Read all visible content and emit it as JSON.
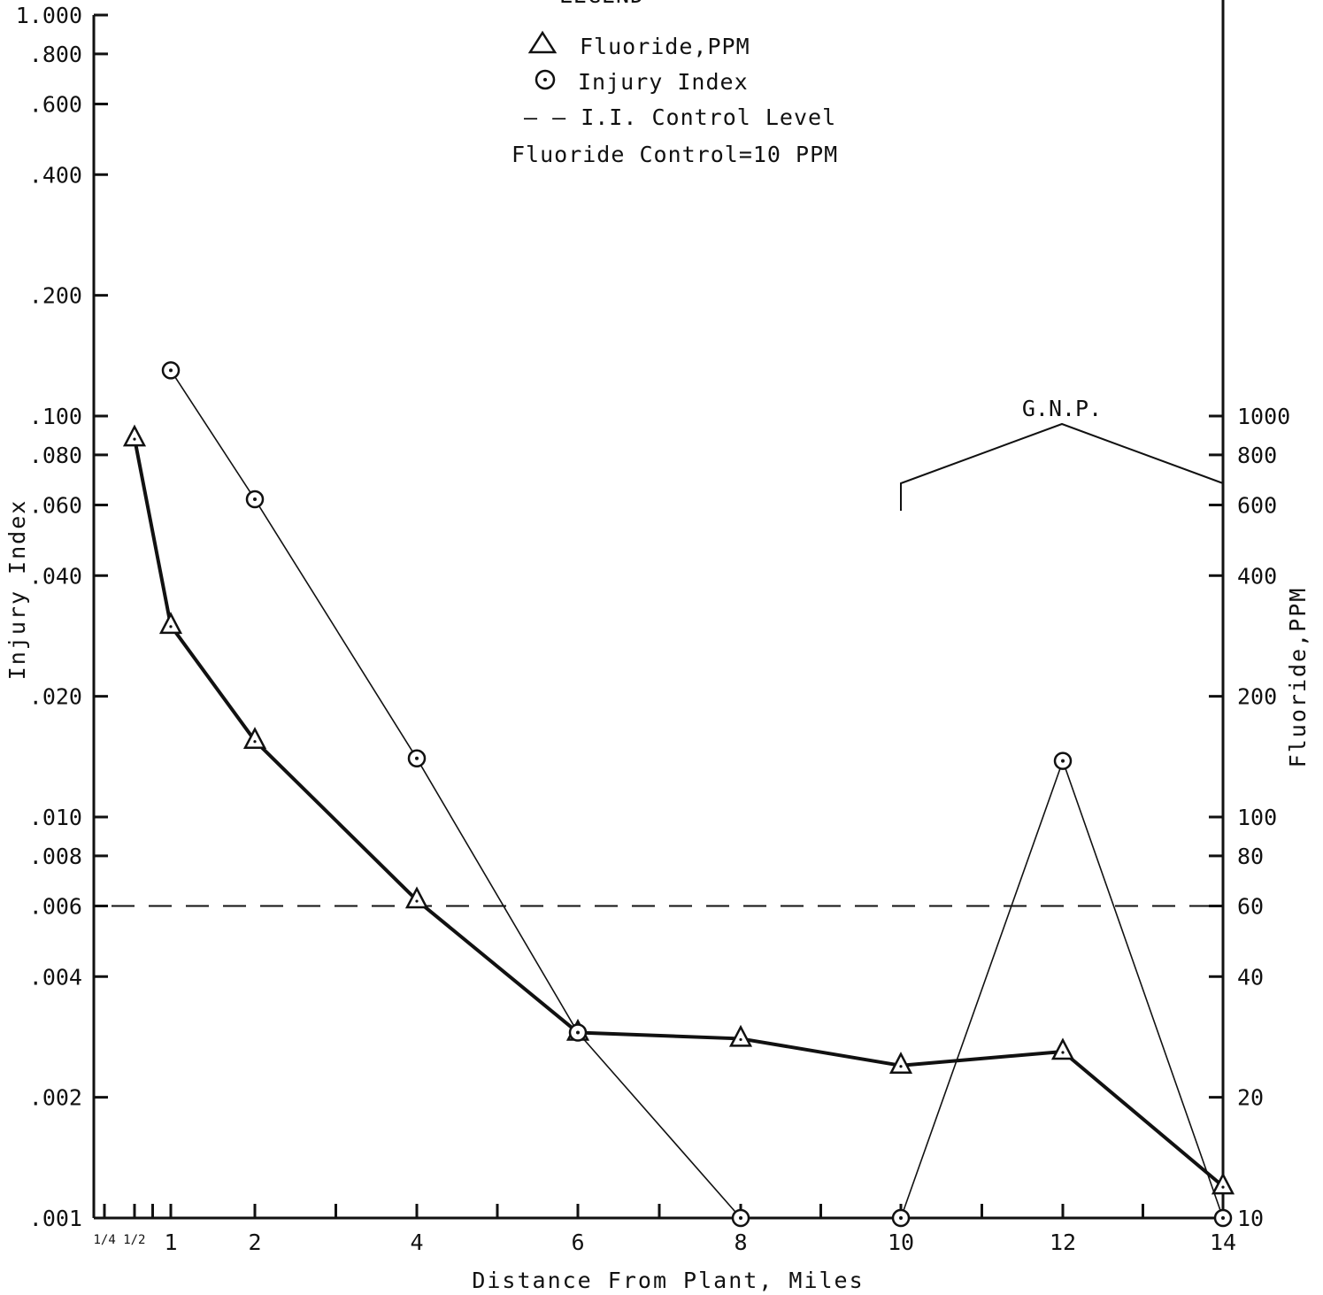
{
  "chart_data": {
    "type": "line",
    "title": "",
    "legend_title": "LEGEND",
    "legend": {
      "fluoride": "Fluoride,PPM",
      "injury": "Injury Index",
      "control_line": "— — I.I. Control Level",
      "fluoride_control": "Fluoride Control=10 PPM"
    },
    "xlabel": "Distance From Plant, Miles",
    "ylabel_left": "Injury Index",
    "ylabel_right": "Fluoride,PPM",
    "x_tick_labels": [
      {
        "x": 0.375,
        "label": "1/4 1/2"
      },
      {
        "x": 1,
        "label": "1"
      },
      {
        "x": 2,
        "label": "2"
      },
      {
        "x": 4,
        "label": "4"
      },
      {
        "x": 6,
        "label": "6"
      },
      {
        "x": 8,
        "label": "8"
      },
      {
        "x": 10,
        "label": "10"
      },
      {
        "x": 12,
        "label": "12"
      },
      {
        "x": 14,
        "label": "14"
      }
    ],
    "x_minor_ticks": [
      0.25,
      0.5,
      0.75,
      3,
      5,
      7,
      9,
      11,
      13
    ],
    "xlim": [
      0,
      14
    ],
    "y_left": {
      "scale": "log",
      "lim": [
        0.001,
        1.0
      ],
      "ticks": [
        {
          "v": 1.0,
          "label": "1.000"
        },
        {
          "v": 0.8,
          "label": ".800"
        },
        {
          "v": 0.6,
          "label": ".600"
        },
        {
          "v": 0.4,
          "label": ".400"
        },
        {
          "v": 0.2,
          "label": ".200"
        },
        {
          "v": 0.1,
          "label": ".100"
        },
        {
          "v": 0.08,
          "label": ".080"
        },
        {
          "v": 0.06,
          "label": ".060"
        },
        {
          "v": 0.04,
          "label": ".040"
        },
        {
          "v": 0.02,
          "label": ".020"
        },
        {
          "v": 0.01,
          "label": ".010"
        },
        {
          "v": 0.008,
          "label": ".008"
        },
        {
          "v": 0.006,
          "label": ".006"
        },
        {
          "v": 0.004,
          "label": ".004"
        },
        {
          "v": 0.002,
          "label": ".002"
        },
        {
          "v": 0.001,
          "label": ".001"
        }
      ]
    },
    "y_right": {
      "scale": "log",
      "lim": [
        10,
        10000
      ],
      "ticks": [
        {
          "v": 1000,
          "label": "1000"
        },
        {
          "v": 800,
          "label": "800"
        },
        {
          "v": 600,
          "label": "600"
        },
        {
          "v": 400,
          "label": "400"
        },
        {
          "v": 200,
          "label": "200"
        },
        {
          "v": 100,
          "label": "100"
        },
        {
          "v": 80,
          "label": "80"
        },
        {
          "v": 60,
          "label": "60"
        },
        {
          "v": 40,
          "label": "40"
        },
        {
          "v": 20,
          "label": "20"
        },
        {
          "v": 10,
          "label": "10"
        }
      ]
    },
    "series": [
      {
        "name": "Fluoride,PPM",
        "axis": "right",
        "marker": "triangle",
        "x": [
          0.5,
          1,
          2,
          4,
          6,
          8,
          10,
          12,
          14
        ],
        "y": [
          880,
          300,
          155,
          62,
          29,
          28,
          24,
          26,
          12
        ]
      },
      {
        "name": "Injury Index",
        "axis": "left",
        "marker": "circle",
        "x": [
          1,
          2,
          4,
          6,
          8,
          10,
          12,
          14
        ],
        "y": [
          0.13,
          0.062,
          0.014,
          0.0029,
          0.001,
          0.001,
          0.0138,
          0.001
        ]
      }
    ],
    "reference_lines": [
      {
        "name": "I.I. Control Level",
        "axis": "left",
        "y": 0.006,
        "style": "dashed"
      }
    ],
    "annotations": [
      {
        "text": "G.N.P.",
        "x_start": 10,
        "x_end": 14
      }
    ]
  }
}
